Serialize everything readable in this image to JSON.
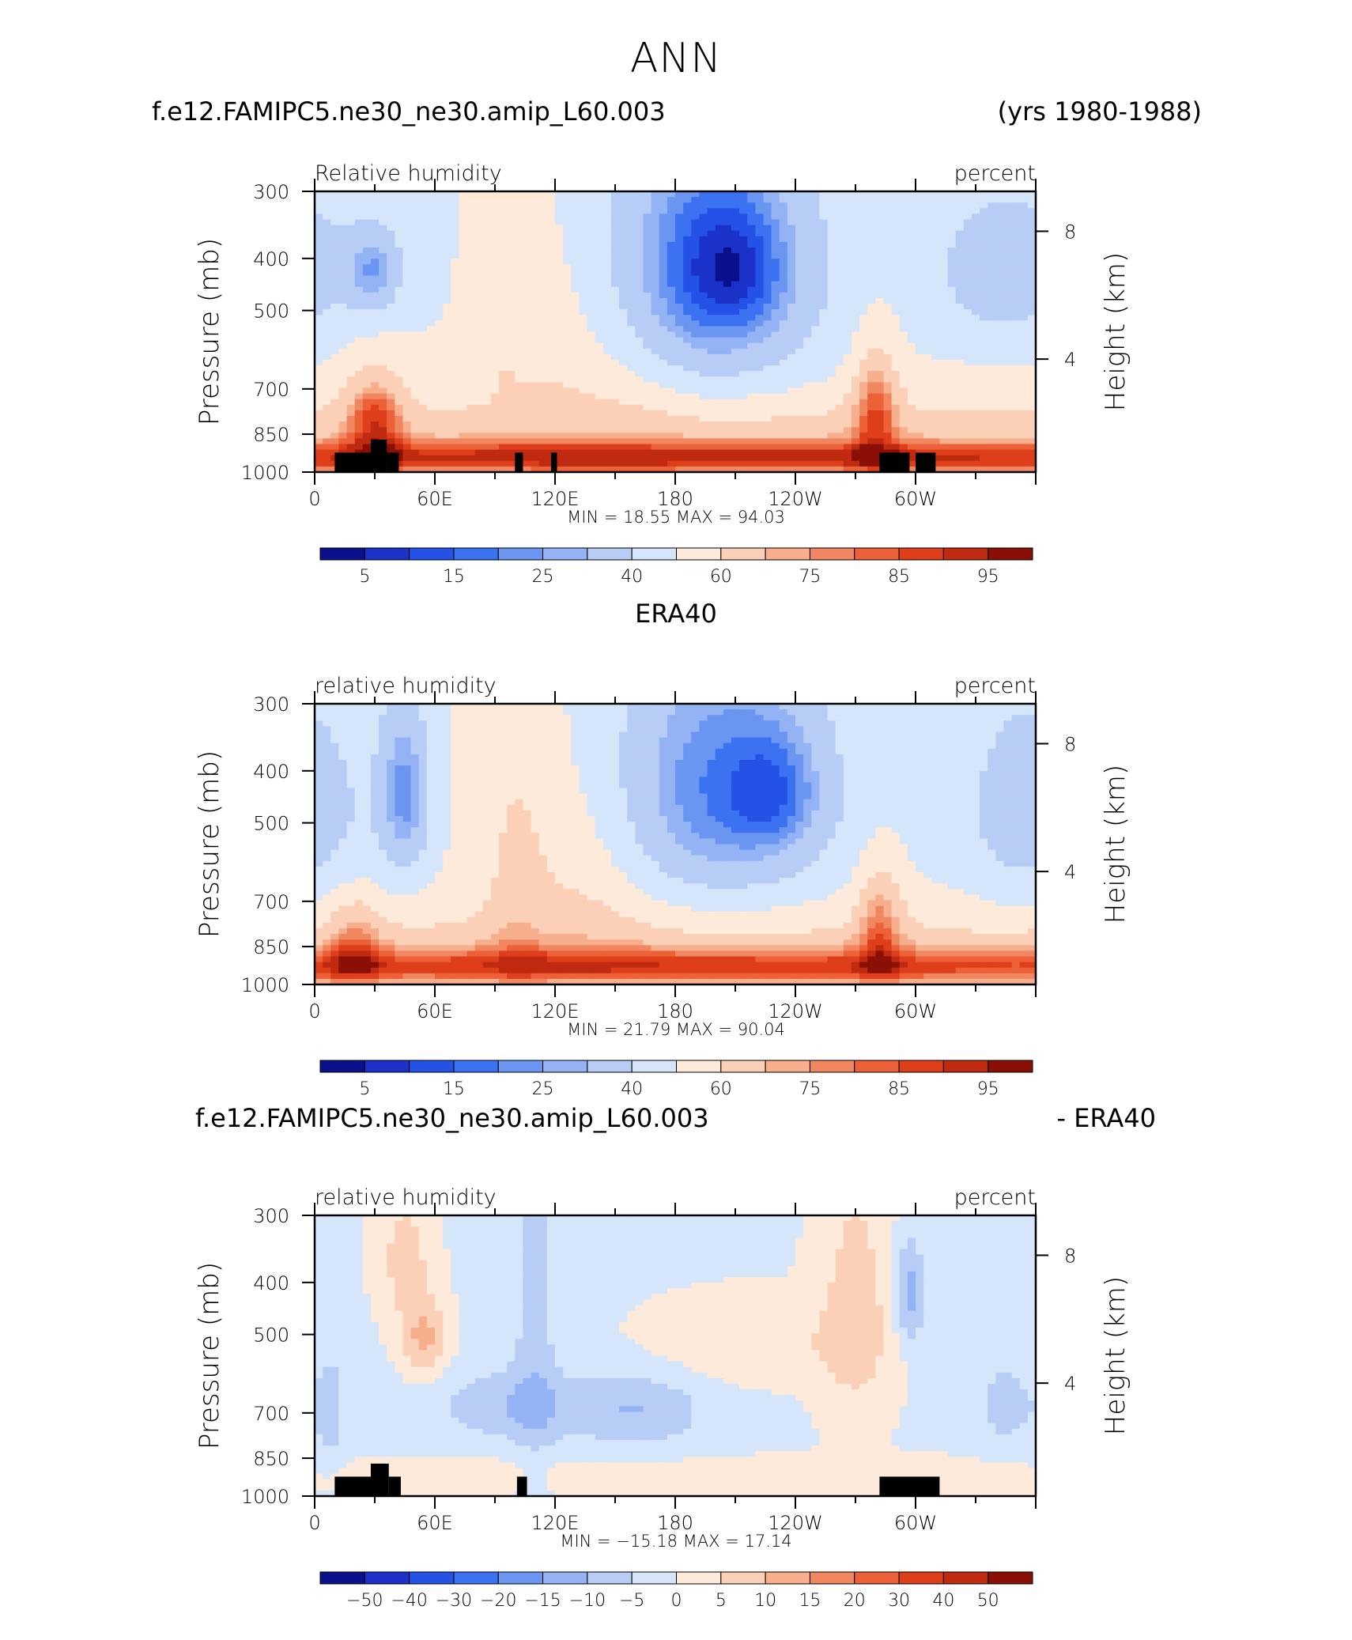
{
  "page": {
    "title": "ANN"
  },
  "colors": {
    "rh_scale": [
      "#0a0f8c",
      "#1a32c8",
      "#2452e6",
      "#3a72f2",
      "#6a96f2",
      "#93b3f4",
      "#b7cdf5",
      "#d5e5fa",
      "#fdeadb",
      "#fbd0b7",
      "#f7ae8c",
      "#f08760",
      "#ec6138",
      "#df3e1a",
      "#c02a10",
      "#8a1006"
    ],
    "diff_scale": [
      "#0a0f8c",
      "#1a32c8",
      "#2452e6",
      "#3a72f2",
      "#6a96f2",
      "#93b3f4",
      "#b7cdf5",
      "#d5e5fa",
      "#fdeadb",
      "#fbd0b7",
      "#f7ae8c",
      "#f08760",
      "#ec6138",
      "#df3e1a",
      "#c02a10",
      "#8a1006"
    ],
    "topography": "#000000"
  },
  "chart_data": [
    {
      "type": "heatmap",
      "panel": "model",
      "title_left": "f.e12.FAMIPC5.ne30_ne30.amip_L60.003",
      "title_center": "",
      "title_right": "(yrs 1980-1988)",
      "field_label": "Relative humidity",
      "units": "percent",
      "ylabel": "Pressure (mb)",
      "ylabel_right": "Height (km)",
      "x_ticks": [
        "0",
        "60E",
        "120E",
        "180",
        "120W",
        "60W"
      ],
      "y_ticks": [
        "300",
        "400",
        "500",
        "700",
        "850",
        "1000"
      ],
      "y_right_ticks": [
        "8",
        "4"
      ],
      "y_range_mb": [
        1000,
        300
      ],
      "x_range_deg": [
        0,
        360
      ],
      "min_max_text": "MIN =   18.55   MAX =   94.03",
      "min": 18.55,
      "max": 94.03,
      "colorbar_labels": [
        "5",
        "15",
        "25",
        "40",
        "60",
        "75",
        "85",
        "95"
      ],
      "levels": [
        5,
        10,
        15,
        20,
        25,
        30,
        40,
        50,
        60,
        70,
        75,
        80,
        85,
        90,
        95
      ],
      "topography": [
        [
          10,
          30,
          920
        ],
        [
          28,
          36,
          870
        ],
        [
          36,
          42,
          920
        ],
        [
          100,
          104,
          920
        ],
        [
          118,
          121,
          920
        ],
        [
          282,
          297,
          920
        ],
        [
          300,
          310,
          920
        ]
      ],
      "field": {
        "base": 50,
        "features": [
          [
            30,
            420,
            10,
            55,
            -22
          ],
          [
            195,
            420,
            38,
            180,
            -35
          ],
          [
            210,
            415,
            18,
            80,
            -14
          ],
          [
            345,
            420,
            26,
            100,
            -18
          ],
          [
            150,
            560,
            26,
            200,
            8
          ],
          [
            110,
            560,
            16,
            200,
            6
          ],
          [
            95,
            450,
            4,
            220,
            6
          ],
          [
            180,
            945,
            360,
            50,
            34
          ],
          [
            180,
            850,
            360,
            110,
            14
          ],
          [
            30,
            800,
            10,
            110,
            28
          ],
          [
            280,
            760,
            8,
            140,
            26
          ]
        ]
      }
    },
    {
      "type": "heatmap",
      "panel": "obs",
      "title_left": "",
      "title_center": "ERA40",
      "title_right": "",
      "field_label": "relative humidity",
      "units": "percent",
      "ylabel": "Pressure (mb)",
      "ylabel_right": "Height (km)",
      "x_ticks": [
        "0",
        "60E",
        "120E",
        "180",
        "120W",
        "60W"
      ],
      "y_ticks": [
        "300",
        "400",
        "500",
        "700",
        "850",
        "1000"
      ],
      "y_right_ticks": [
        "8",
        "4"
      ],
      "y_range_mb": [
        1000,
        300
      ],
      "x_range_deg": [
        0,
        360
      ],
      "min_max_text": "MIN =   21.79   MAX =   90.04",
      "min": 21.79,
      "max": 90.04,
      "colorbar_labels": [
        "5",
        "15",
        "25",
        "40",
        "60",
        "75",
        "85",
        "95"
      ],
      "levels": [
        5,
        10,
        15,
        20,
        25,
        30,
        40,
        50,
        60,
        70,
        75,
        80,
        85,
        90,
        95
      ],
      "topography": [],
      "field": {
        "base": 50,
        "features": [
          [
            45,
            440,
            9,
            120,
            -26
          ],
          [
            200,
            430,
            40,
            180,
            -30
          ],
          [
            230,
            440,
            16,
            80,
            -16
          ],
          [
            355,
            470,
            24,
            160,
            -16
          ],
          [
            130,
            600,
            30,
            220,
            10
          ],
          [
            100,
            620,
            10,
            240,
            8
          ],
          [
            180,
            930,
            360,
            55,
            30
          ],
          [
            180,
            850,
            360,
            110,
            12
          ],
          [
            20,
            850,
            10,
            120,
            18
          ],
          [
            282,
            780,
            8,
            140,
            22
          ]
        ]
      }
    },
    {
      "type": "heatmap",
      "panel": "diff",
      "title_left": "f.e12.FAMIPC5.ne30_ne30.amip_L60.003",
      "title_center": "",
      "title_right": "- ERA40",
      "field_label": "relative humidity",
      "units": "percent",
      "ylabel": "Pressure (mb)",
      "ylabel_right": "Height (km)",
      "x_ticks": [
        "0",
        "60E",
        "120E",
        "180",
        "120W",
        "60W"
      ],
      "y_ticks": [
        "300",
        "400",
        "500",
        "700",
        "850",
        "1000"
      ],
      "y_right_ticks": [
        "8",
        "4"
      ],
      "y_range_mb": [
        1000,
        300
      ],
      "x_range_deg": [
        0,
        360
      ],
      "min_max_text": "MIN =  −15.18   MAX =   17.14",
      "min": -15.18,
      "max": 17.14,
      "colorbar_labels": [
        "−50",
        "−40",
        "−30",
        "−20",
        "−15",
        "−10",
        "−5",
        "0",
        "5",
        "10",
        "15",
        "20",
        "30",
        "40",
        "50"
      ],
      "levels": [
        -50,
        -40,
        -30,
        -20,
        -15,
        -10,
        -5,
        0,
        5,
        10,
        15,
        20,
        30,
        40,
        50
      ],
      "topography": [
        [
          10,
          32,
          920
        ],
        [
          28,
          37,
          870
        ],
        [
          37,
          43,
          920
        ],
        [
          101,
          106,
          920
        ],
        [
          282,
          312,
          920
        ]
      ],
      "field": {
        "base": -1,
        "features": [
          [
            55,
            510,
            8,
            60,
            12
          ],
          [
            45,
            360,
            10,
            80,
            8
          ],
          [
            110,
            500,
            8,
            300,
            -6
          ],
          [
            95,
            680,
            24,
            70,
            -8
          ],
          [
            160,
            690,
            24,
            80,
            -9
          ],
          [
            215,
            520,
            40,
            70,
            5
          ],
          [
            270,
            450,
            14,
            200,
            8
          ],
          [
            297,
            420,
            5,
            70,
            -12
          ],
          [
            345,
            680,
            10,
            100,
            -6
          ],
          [
            180,
            920,
            360,
            60,
            3
          ],
          [
            8,
            700,
            6,
            140,
            -6
          ]
        ]
      }
    }
  ]
}
